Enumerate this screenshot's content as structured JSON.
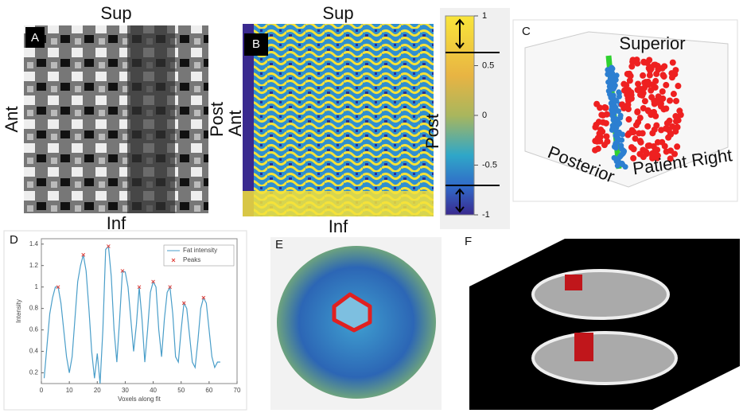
{
  "panels": {
    "a": {
      "label": "A",
      "top": "Sup",
      "bottom": "Inf",
      "left": "Ant",
      "right": "Post"
    },
    "b": {
      "label": "B",
      "top": "Sup",
      "bottom": "Inf",
      "left": "Ant",
      "right": "Post"
    },
    "colorbar": {
      "lim": [
        -1,
        1
      ],
      "ticks": [
        1,
        0.5,
        0,
        -0.5,
        -1
      ]
    },
    "c": {
      "label": "C",
      "vertical": "Superior",
      "depth": "Posterior",
      "horizontal": "Patient Right"
    },
    "e": {
      "label": "E"
    },
    "f": {
      "label": "F"
    }
  },
  "chart_data": {
    "type": "line",
    "panel_label": "D",
    "xlabel": "Voxels along fit",
    "ylabel": "Intensity",
    "xlim": [
      0,
      70
    ],
    "xticks": [
      0,
      10,
      20,
      30,
      40,
      50,
      60,
      70
    ],
    "ylim": [
      0.1,
      1.45
    ],
    "yticks": [
      0.2,
      0.4,
      0.6,
      0.8,
      1,
      1.2,
      1.4
    ],
    "legend": "upper right",
    "series": [
      {
        "name": "Fat intensity",
        "color": "#4a9ec9",
        "kind": "line",
        "x": [
          1,
          2,
          3,
          4,
          5,
          6,
          7,
          8,
          9,
          10,
          11,
          12,
          13,
          14,
          15,
          16,
          17,
          18,
          19,
          20,
          21,
          22,
          23,
          24,
          25,
          26,
          27,
          28,
          29,
          30,
          31,
          32,
          33,
          34,
          35,
          36,
          37,
          38,
          39,
          40,
          41,
          42,
          43,
          44,
          45,
          46,
          47,
          48,
          49,
          50,
          51,
          52,
          53,
          54,
          55,
          56,
          57,
          58,
          59,
          60,
          61,
          62,
          63,
          64
        ],
        "values": [
          0.15,
          0.45,
          0.75,
          0.9,
          1.0,
          1.0,
          0.85,
          0.6,
          0.35,
          0.2,
          0.35,
          0.7,
          1.05,
          1.2,
          1.3,
          1.15,
          0.8,
          0.4,
          0.15,
          0.38,
          0.1,
          0.6,
          1.35,
          1.38,
          1.1,
          0.6,
          0.3,
          0.7,
          1.15,
          1.14,
          1.0,
          0.7,
          0.4,
          0.65,
          1.0,
          0.7,
          0.3,
          0.6,
          0.95,
          1.05,
          1.0,
          0.6,
          0.35,
          0.7,
          0.95,
          1.0,
          0.75,
          0.35,
          0.3,
          0.6,
          0.85,
          0.8,
          0.55,
          0.3,
          0.25,
          0.5,
          0.8,
          0.9,
          0.85,
          0.6,
          0.35,
          0.25,
          0.3,
          0.3
        ]
      },
      {
        "name": "Peaks",
        "color": "#e0403a",
        "kind": "marker",
        "x": [
          6,
          15,
          24,
          29,
          35,
          40,
          46,
          51,
          58
        ],
        "values": [
          1.0,
          1.3,
          1.38,
          1.15,
          1.0,
          1.05,
          1.0,
          0.85,
          0.9
        ]
      }
    ]
  }
}
